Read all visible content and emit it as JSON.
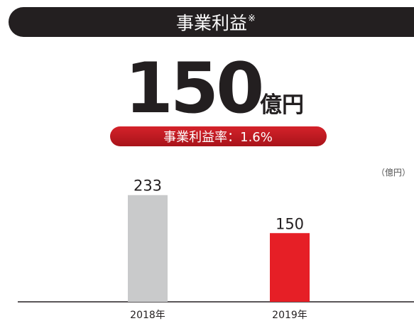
{
  "header": {
    "title": "事業利益",
    "note_mark": "※"
  },
  "headline": {
    "value": "150",
    "unit": "億円"
  },
  "ratio_label": "事業利益率：1.6%",
  "chart_data": {
    "type": "bar",
    "unit_label": "（億円）",
    "categories": [
      "2018年",
      "2019年"
    ],
    "values": [
      233,
      150
    ],
    "colors": [
      "#c9cacb",
      "#e61f26"
    ]
  }
}
